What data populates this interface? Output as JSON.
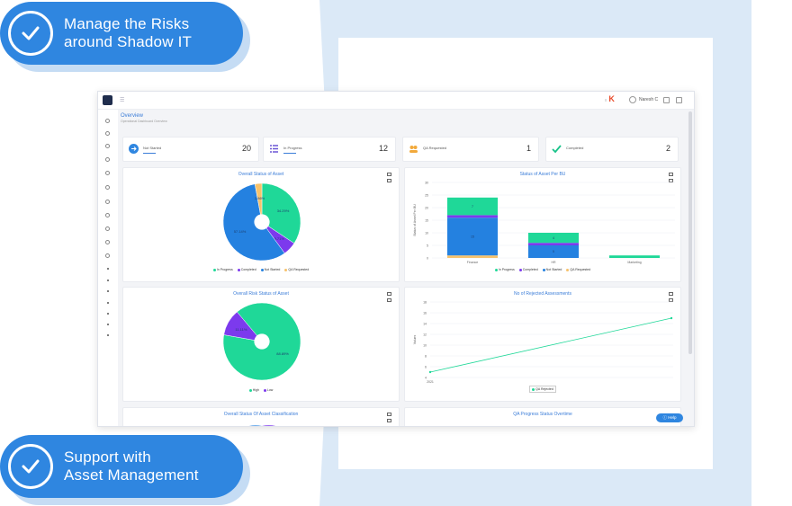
{
  "banners": {
    "top": {
      "line1": "Manage the Risks",
      "line2": "around Shadow IT"
    },
    "bottom": {
      "line1": "Support with",
      "line2": "Asset Management"
    }
  },
  "app": {
    "user": "Naresh C",
    "breadcrumb": {
      "title": "Overview",
      "subtitle": "Operational Dashboard Overview"
    },
    "help_label": "Help",
    "kpis": [
      {
        "label": "Not Started",
        "value": "20",
        "icon": "arrow-right-icon",
        "color": "#2f86e0"
      },
      {
        "label": "In Progress",
        "value": "12",
        "icon": "list-icon",
        "color": "#6b57d6"
      },
      {
        "label": "QA Requested",
        "value": "1",
        "icon": "users-icon",
        "color": "#f2a93b"
      },
      {
        "label": "Completed",
        "value": "2",
        "icon": "check-icon",
        "color": "#19c38a"
      }
    ],
    "panels": {
      "overall_status": {
        "title": "Overall Status of Asset",
        "legend": [
          {
            "label": "In Progress",
            "color": "#1fd898"
          },
          {
            "label": "Completed",
            "color": "#7c3aed"
          },
          {
            "label": "Not Started",
            "color": "#2481e0"
          },
          {
            "label": "QA Requested",
            "color": "#f7c26b"
          }
        ]
      },
      "per_bu": {
        "title": "Status of Asset Per BU",
        "ylabel": "Status of Asset Per BU",
        "legend": [
          {
            "label": "In Progress",
            "color": "#1fd898"
          },
          {
            "label": "Completed",
            "color": "#7c3aed"
          },
          {
            "label": "Not Started",
            "color": "#2481e0"
          },
          {
            "label": "QA Requested",
            "color": "#f7c26b"
          }
        ]
      },
      "risk": {
        "title": "Overall Risk Status of Asset",
        "legend": [
          {
            "label": "High",
            "color": "#1fd898"
          },
          {
            "label": "Low",
            "color": "#7c3aed"
          }
        ]
      },
      "rejected": {
        "title": "No of Rejected Assessments",
        "ylabel": "Values",
        "legend": [
          {
            "label": "QA Rejected",
            "color": "#1fd898"
          }
        ]
      },
      "classification": {
        "title": "Overall Status Of Asset Classification"
      },
      "qa_progress": {
        "title": "QA Progress Status Overtime"
      }
    }
  },
  "chart_data": [
    {
      "type": "pie",
      "title": "Overall Status of Asset",
      "categories": [
        "In Progress",
        "Completed",
        "Not Started",
        "QA Requested"
      ],
      "values": [
        34.3,
        5.7,
        57.1,
        2.9
      ],
      "labels": [
        "34.29%",
        "5.71%",
        "57.14%",
        "2.86%"
      ]
    },
    {
      "type": "bar",
      "title": "Status of Asset Per BU",
      "categories": [
        "Finance",
        "HR",
        "Marketing"
      ],
      "series": [
        {
          "name": "QA Requested",
          "values": [
            1,
            0,
            0
          ]
        },
        {
          "name": "Not Started",
          "values": [
            15,
            5,
            0
          ]
        },
        {
          "name": "Completed",
          "values": [
            1,
            1,
            0
          ]
        },
        {
          "name": "In Progress",
          "values": [
            7,
            4,
            1
          ]
        }
      ],
      "ylim": [
        0,
        30
      ],
      "yticks": [
        0,
        5,
        10,
        15,
        20,
        25,
        30
      ]
    },
    {
      "type": "pie",
      "title": "Overall Risk Status of Asset",
      "categories": [
        "High",
        "Low"
      ],
      "values": [
        88.9,
        11.1
      ],
      "labels": [
        "88.89%",
        "11.11%"
      ]
    },
    {
      "type": "line",
      "title": "No of Rejected Assessments",
      "x": [
        "2021",
        ""
      ],
      "series": [
        {
          "name": "QA Rejected",
          "values": [
            0.5,
            1.5
          ]
        }
      ],
      "ylim": [
        0.4,
        1.8
      ],
      "yticks": [
        0.4,
        0.6,
        0.8,
        1.0,
        1.2,
        1.4,
        1.6,
        1.8
      ],
      "ytick_labels": [
        "4",
        "6",
        "8",
        "10",
        "12",
        "14",
        "16",
        "18"
      ]
    }
  ]
}
